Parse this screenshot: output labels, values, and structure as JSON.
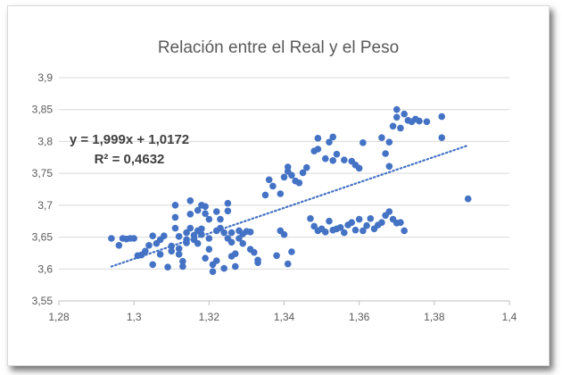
{
  "chart_data": {
    "type": "scatter",
    "title": "Relación entre el Real y el Peso",
    "xlabel": "",
    "ylabel": "",
    "xlim": [
      1.28,
      1.4
    ],
    "ylim": [
      3.55,
      3.9
    ],
    "x_ticks": [
      "1,28",
      "1,3",
      "1,32",
      "1,34",
      "1,36",
      "1,38",
      "1,4"
    ],
    "y_ticks": [
      "3,55",
      "3,6",
      "3,65",
      "3,7",
      "3,75",
      "3,8",
      "3,85",
      "3,9"
    ],
    "grid": "horizontal",
    "legend": "none",
    "series": [
      {
        "marker_color": "#4472c4",
        "points": [
          [
            1.294,
            3.648
          ],
          [
            1.296,
            3.637
          ],
          [
            1.297,
            3.648
          ],
          [
            1.298,
            3.647
          ],
          [
            1.299,
            3.648
          ],
          [
            1.3,
            3.648
          ],
          [
            1.301,
            3.621
          ],
          [
            1.302,
            3.622
          ],
          [
            1.303,
            3.628
          ],
          [
            1.304,
            3.637
          ],
          [
            1.305,
            3.652
          ],
          [
            1.305,
            3.607
          ],
          [
            1.306,
            3.64
          ],
          [
            1.307,
            3.646
          ],
          [
            1.307,
            3.623
          ],
          [
            1.308,
            3.652
          ],
          [
            1.309,
            3.603
          ],
          [
            1.31,
            3.628
          ],
          [
            1.31,
            3.636
          ],
          [
            1.311,
            3.7
          ],
          [
            1.311,
            3.681
          ],
          [
            1.311,
            3.664
          ],
          [
            1.312,
            3.651
          ],
          [
            1.312,
            3.632
          ],
          [
            1.312,
            3.623
          ],
          [
            1.313,
            3.612
          ],
          [
            1.313,
            3.604
          ],
          [
            1.314,
            3.646
          ],
          [
            1.314,
            3.657
          ],
          [
            1.314,
            3.641
          ],
          [
            1.315,
            3.707
          ],
          [
            1.315,
            3.686
          ],
          [
            1.315,
            3.664
          ],
          [
            1.316,
            3.653
          ],
          [
            1.316,
            3.646
          ],
          [
            1.317,
            3.64
          ],
          [
            1.317,
            3.66
          ],
          [
            1.317,
            3.692
          ],
          [
            1.318,
            3.654
          ],
          [
            1.318,
            3.7
          ],
          [
            1.318,
            3.663
          ],
          [
            1.319,
            3.687
          ],
          [
            1.319,
            3.698
          ],
          [
            1.319,
            3.617
          ],
          [
            1.32,
            3.678
          ],
          [
            1.32,
            3.631
          ],
          [
            1.32,
            3.648
          ],
          [
            1.321,
            3.607
          ],
          [
            1.321,
            3.596
          ],
          [
            1.322,
            3.613
          ],
          [
            1.322,
            3.66
          ],
          [
            1.322,
            3.69
          ],
          [
            1.323,
            3.678
          ],
          [
            1.323,
            3.664
          ],
          [
            1.324,
            3.657
          ],
          [
            1.324,
            3.601
          ],
          [
            1.325,
            3.703
          ],
          [
            1.325,
            3.691
          ],
          [
            1.325,
            3.648
          ],
          [
            1.326,
            3.657
          ],
          [
            1.326,
            3.642
          ],
          [
            1.326,
            3.62
          ],
          [
            1.327,
            3.624
          ],
          [
            1.327,
            3.604
          ],
          [
            1.328,
            3.66
          ],
          [
            1.328,
            3.648
          ],
          [
            1.329,
            3.64
          ],
          [
            1.329,
            3.655
          ],
          [
            1.33,
            3.659
          ],
          [
            1.331,
            3.658
          ],
          [
            1.331,
            3.631
          ],
          [
            1.332,
            3.626
          ],
          [
            1.333,
            3.614
          ],
          [
            1.333,
            3.61
          ],
          [
            1.335,
            3.716
          ],
          [
            1.336,
            3.74
          ],
          [
            1.337,
            3.73
          ],
          [
            1.339,
            3.718
          ],
          [
            1.34,
            3.744
          ],
          [
            1.341,
            3.753
          ],
          [
            1.341,
            3.76
          ],
          [
            1.342,
            3.747
          ],
          [
            1.343,
            3.738
          ],
          [
            1.344,
            3.735
          ],
          [
            1.345,
            3.751
          ],
          [
            1.346,
            3.759
          ],
          [
            1.348,
            3.785
          ],
          [
            1.349,
            3.805
          ],
          [
            1.349,
            3.788
          ],
          [
            1.351,
            3.773
          ],
          [
            1.352,
            3.799
          ],
          [
            1.353,
            3.77
          ],
          [
            1.353,
            3.807
          ],
          [
            1.354,
            3.78
          ],
          [
            1.356,
            3.771
          ],
          [
            1.358,
            3.769
          ],
          [
            1.359,
            3.763
          ],
          [
            1.36,
            3.758
          ],
          [
            1.361,
            3.798
          ],
          [
            1.366,
            3.806
          ],
          [
            1.367,
            3.781
          ],
          [
            1.368,
            3.761
          ],
          [
            1.368,
            3.799
          ],
          [
            1.369,
            3.824
          ],
          [
            1.37,
            3.838
          ],
          [
            1.37,
            3.85
          ],
          [
            1.371,
            3.821
          ],
          [
            1.372,
            3.843
          ],
          [
            1.373,
            3.833
          ],
          [
            1.374,
            3.831
          ],
          [
            1.375,
            3.835
          ],
          [
            1.376,
            3.832
          ],
          [
            1.378,
            3.831
          ],
          [
            1.382,
            3.839
          ],
          [
            1.382,
            3.806
          ],
          [
            1.389,
            3.71
          ],
          [
            1.347,
            3.679
          ],
          [
            1.348,
            3.667
          ],
          [
            1.349,
            3.66
          ],
          [
            1.35,
            3.663
          ],
          [
            1.351,
            3.658
          ],
          [
            1.352,
            3.675
          ],
          [
            1.353,
            3.661
          ],
          [
            1.354,
            3.663
          ],
          [
            1.355,
            3.665
          ],
          [
            1.356,
            3.657
          ],
          [
            1.357,
            3.669
          ],
          [
            1.358,
            3.673
          ],
          [
            1.359,
            3.661
          ],
          [
            1.36,
            3.678
          ],
          [
            1.361,
            3.66
          ],
          [
            1.362,
            3.668
          ],
          [
            1.363,
            3.679
          ],
          [
            1.364,
            3.663
          ],
          [
            1.365,
            3.669
          ],
          [
            1.366,
            3.673
          ],
          [
            1.367,
            3.684
          ],
          [
            1.368,
            3.69
          ],
          [
            1.369,
            3.678
          ],
          [
            1.37,
            3.672
          ],
          [
            1.371,
            3.673
          ],
          [
            1.372,
            3.66
          ],
          [
            1.338,
            3.621
          ],
          [
            1.339,
            3.66
          ],
          [
            1.34,
            3.654
          ],
          [
            1.341,
            3.608
          ],
          [
            1.342,
            3.627
          ]
        ]
      }
    ],
    "trendline": {
      "style": "dotted",
      "color": "#4472c4",
      "x_range": [
        1.294,
        1.389
      ],
      "slope": 1.999,
      "intercept": 1.0172
    },
    "annotations": [
      "y = 1,999x + 1,0172",
      "R² = 0,4632"
    ]
  }
}
